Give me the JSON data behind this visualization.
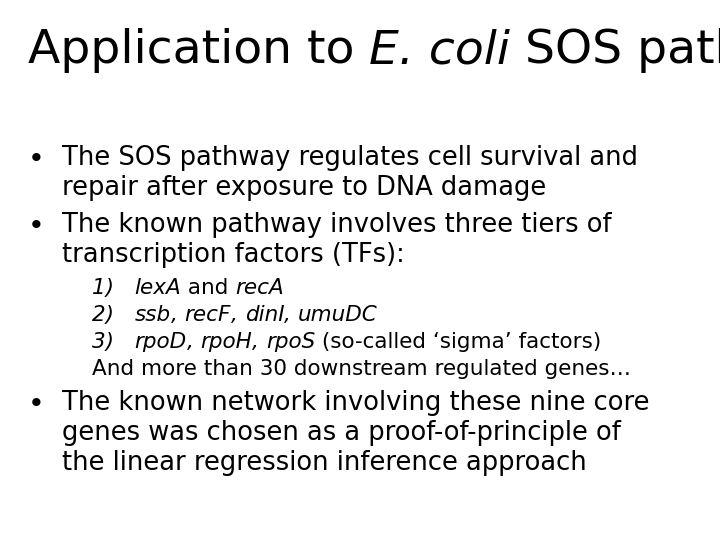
{
  "background_color": "#ffffff",
  "text_color": "#000000",
  "title_fontsize": 34,
  "body_fontsize": 18.5,
  "sub_fontsize": 15.5,
  "figsize": [
    7.2,
    5.4
  ],
  "dpi": 100,
  "font_family": "DejaVu Sans"
}
